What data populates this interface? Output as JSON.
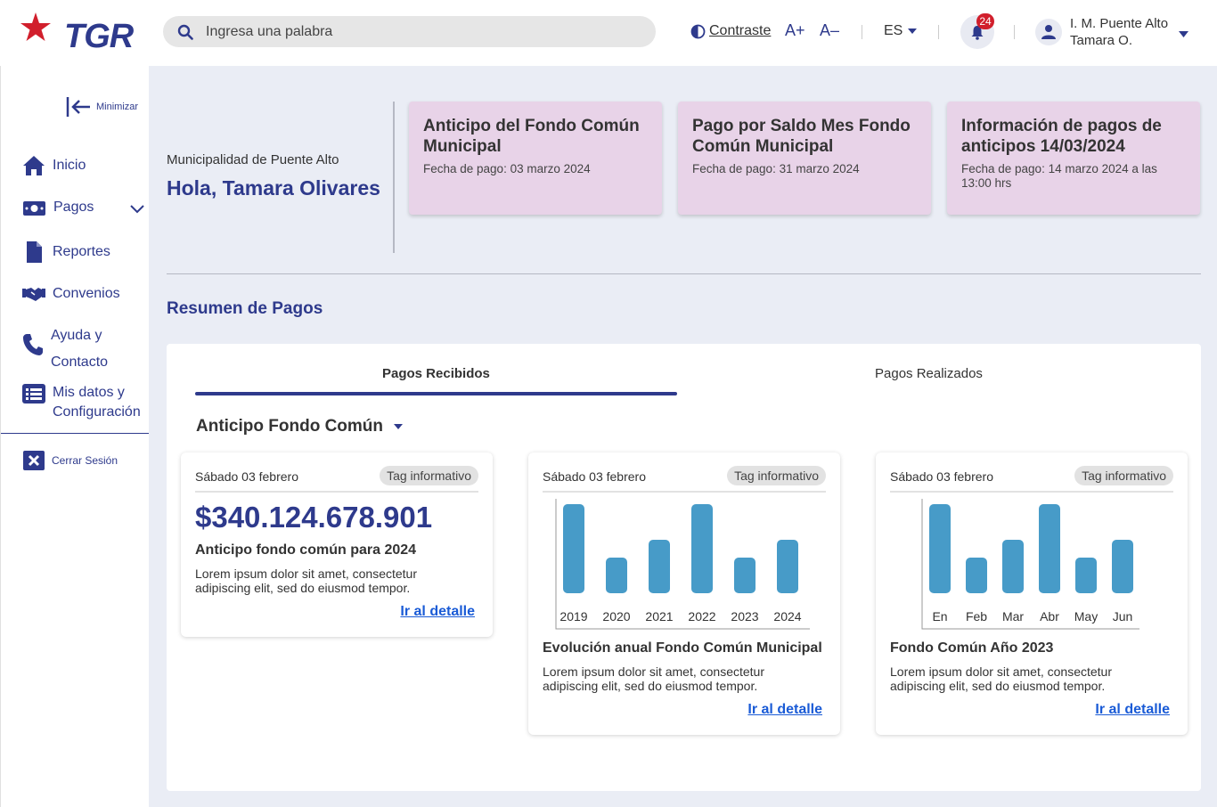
{
  "header": {
    "logo_text": "TGR",
    "search_placeholder": "Ingresa una palabra",
    "contrast_label": "Contraste",
    "font_increase": "A+",
    "font_decrease": "A–",
    "language": "ES",
    "notifications_count": "24",
    "user_line1": "I. M. Puente Alto",
    "user_line2": "Tamara O."
  },
  "sidebar": {
    "minimize_label": "Minimizar",
    "items": [
      {
        "label": "Inicio",
        "icon": "home-icon"
      },
      {
        "label": "Pagos",
        "icon": "money-icon"
      },
      {
        "label": "Reportes",
        "icon": "document-icon"
      },
      {
        "label": "Convenios",
        "icon": "handshake-icon"
      },
      {
        "label_line1": "Ayuda y",
        "label_line2": "Contacto",
        "icon": "phone-icon"
      },
      {
        "label_line1": "Mis datos y",
        "label_line2": "Configuración",
        "icon": "list-icon"
      }
    ],
    "logout_label": "Cerrar Sesión"
  },
  "greeting": {
    "org": "Municipalidad de Puente Alto",
    "hello": "Hola, Tamara Olivares"
  },
  "notices": [
    {
      "title": "Anticipo del Fondo Común Municipal",
      "subtitle": "Fecha de pago: 03 marzo 2024"
    },
    {
      "title": "Pago por Saldo Mes Fondo Común Municipal",
      "subtitle": "Fecha de pago: 31 marzo 2024"
    },
    {
      "title": "Información de pagos de anticipos 14/03/2024",
      "subtitle": "Fecha de pago: 14 marzo 2024 a las 13:00 hrs"
    }
  ],
  "summary": {
    "title": "Resumen de Pagos",
    "tabs": [
      "Pagos Recibidos",
      "Pagos Realizados"
    ],
    "dropdown": "Anticipo Fondo Común",
    "cards": [
      {
        "date": "Sábado 03 febrero",
        "tag": "Tag informativo",
        "amount": "$340.124.678.901",
        "title": "Anticipo fondo común para 2024",
        "desc": "Lorem ipsum dolor sit amet, consectetur adipiscing elit, sed do eiusmod tempor.",
        "link": "Ir al detalle"
      },
      {
        "date": "Sábado 03 febrero",
        "tag": "Tag informativo",
        "title": "Evolución anual Fondo Común Municipal",
        "desc": "Lorem ipsum dolor sit amet, consectetur adipiscing elit, sed do eiusmod tempor.",
        "link": "Ir al detalle"
      },
      {
        "date": "Sábado 03 febrero",
        "tag": "Tag informativo",
        "title": "Fondo Común Año 2023",
        "desc": "Lorem ipsum dolor sit amet, consectetur adipiscing elit, sed do eiusmod tempor.",
        "link": "Ir al detalle"
      }
    ]
  },
  "chart_data": [
    {
      "type": "bar",
      "categories": [
        "2019",
        "2020",
        "2021",
        "2022",
        "2023",
        "2024"
      ],
      "values": [
        100,
        40,
        60,
        100,
        40,
        60
      ],
      "ylim": [
        0,
        100
      ],
      "color": "#479bc8"
    },
    {
      "type": "bar",
      "categories": [
        "En",
        "Feb",
        "Mar",
        "Abr",
        "May",
        "Jun"
      ],
      "values": [
        100,
        40,
        60,
        100,
        40,
        60
      ],
      "ylim": [
        0,
        100
      ],
      "color": "#479bc8"
    }
  ],
  "colors": {
    "primary": "#2e3a8c",
    "notice_bg": "#e8d3e8",
    "link": "#1a5bd6",
    "bar": "#479bc8",
    "badge": "#d11f2c"
  }
}
